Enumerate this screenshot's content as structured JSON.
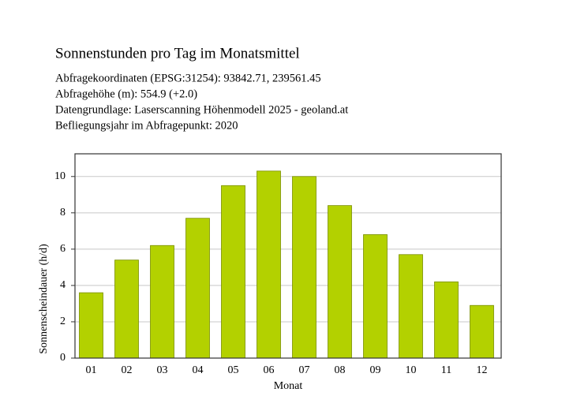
{
  "chart_data": {
    "type": "bar",
    "title": "Sonnenstunden pro Tag im Monatsmittel",
    "subtitle": [
      "Abfragekoordinaten (EPSG:31254): 93842.71, 239561.45",
      "Abfragehöhe (m): 554.9 (+2.0)",
      "Datengrundlage: Laserscanning Höhenmodell 2025 - geoland.at",
      "Befliegungsjahr im Abfragepunkt: 2020"
    ],
    "x_label": "Monat",
    "y_label": "Sonnenscheindauer (h/d)",
    "categories": [
      "01",
      "02",
      "03",
      "04",
      "05",
      "06",
      "07",
      "08",
      "09",
      "10",
      "11",
      "12"
    ],
    "values": [
      3.6,
      5.4,
      6.2,
      7.7,
      9.5,
      10.3,
      10.0,
      8.4,
      6.8,
      5.7,
      4.2,
      2.9
    ],
    "color": "#b3d100",
    "ylim": [
      0,
      11.25
    ],
    "yticks": [
      0,
      2,
      4,
      6,
      8,
      10
    ],
    "grid": true
  }
}
